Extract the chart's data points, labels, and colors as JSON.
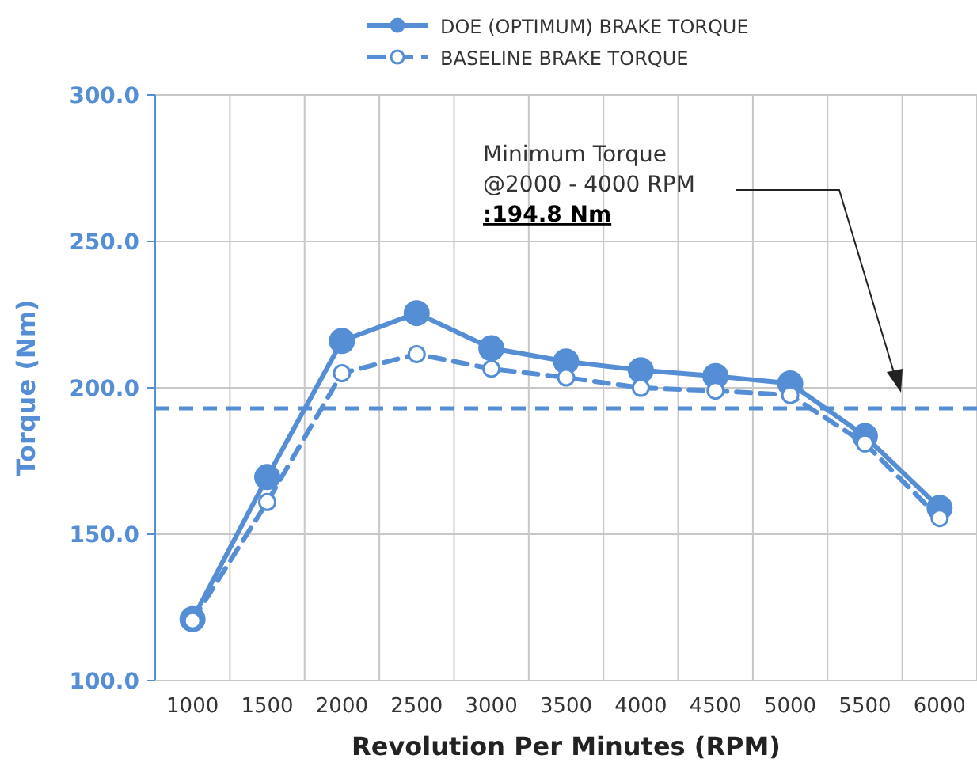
{
  "chart_data": {
    "type": "line",
    "xlabel": "Revolution Per Minutes (RPM)",
    "ylabel": "Torque (Nm)",
    "categories": [
      "1000",
      "1500",
      "2000",
      "2500",
      "3000",
      "3500",
      "4000",
      "4500",
      "5000",
      "5500",
      "6000"
    ],
    "series": [
      {
        "name": "DOE (OPTIMUM) BRAKE TORQUE",
        "color": "#558ed5",
        "line_style": "solid",
        "marker": "circle",
        "values": [
          121,
          169.5,
          216,
          225.5,
          213.5,
          209,
          206,
          204,
          201.5,
          183.5,
          159
        ]
      },
      {
        "name": "BASELINE BRAKE TORQUE",
        "color": "#558ed5",
        "line_style": "dashed",
        "marker": "circle",
        "values": [
          120.5,
          161,
          205,
          211.5,
          206.5,
          203.5,
          200,
          199,
          197.5,
          181,
          155.5
        ]
      }
    ],
    "ylim": [
      100,
      300
    ],
    "yticks": [
      {
        "value": 100,
        "label": "100.0"
      },
      {
        "value": 150,
        "label": "150.0"
      },
      {
        "value": 200,
        "label": "200.0"
      },
      {
        "value": 250,
        "label": "250.0"
      },
      {
        "value": 300,
        "label": "300.0"
      }
    ],
    "grid": true,
    "legend": "top",
    "ref_lines": [
      {
        "axis": "y",
        "value": 193,
        "color": "#558ed5",
        "line_style": "dashed"
      }
    ],
    "annotations": [
      "Minimum Torque\n@2000 - 4000 RPM\n:194.8 Nm"
    ]
  }
}
